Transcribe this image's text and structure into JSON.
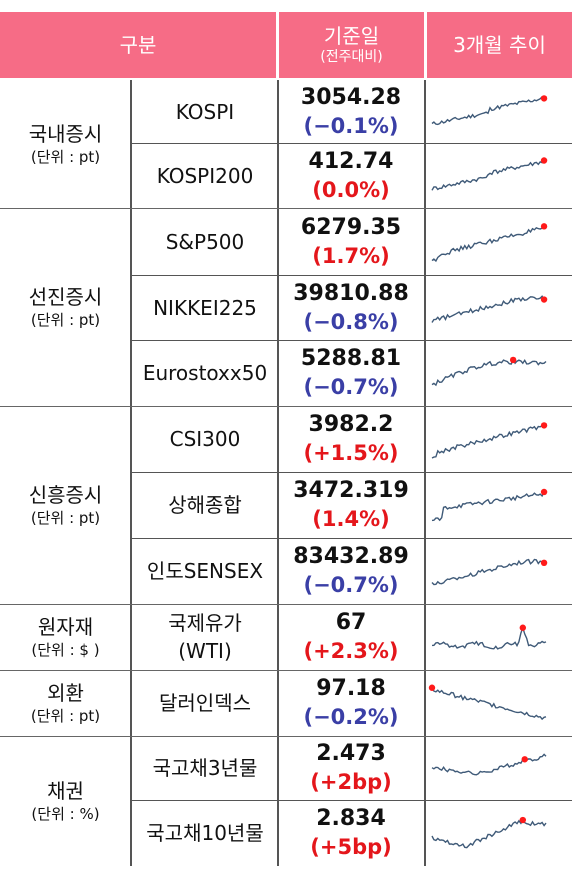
{
  "header": {
    "category_label": "구분",
    "date_label": "기준일",
    "date_sub": "(전주대비)",
    "trend_label": "3개월 추이"
  },
  "groups": [
    {
      "name": "국내증시",
      "unit": "(단위 : pt)"
    },
    {
      "name": "선진증시",
      "unit": "(단위 : pt)"
    },
    {
      "name": "신흥증시",
      "unit": "(단위 : pt)"
    },
    {
      "name": "원자재",
      "unit": "(단위 : $ )"
    },
    {
      "name": "외환",
      "unit": "(단위 : pt)"
    },
    {
      "name": "채권",
      "unit": "(단위 : %)"
    }
  ],
  "rows": [
    {
      "label": "KOSPI",
      "value": "3054.28",
      "change": "(−0.1%)",
      "dir": "down"
    },
    {
      "label": "KOSPI200",
      "value": "412.74",
      "change": "(0.0%)",
      "dir": "flat"
    },
    {
      "label": "S&P500",
      "value": "6279.35",
      "change": "(1.7%)",
      "dir": "up"
    },
    {
      "label": "NIKKEI225",
      "value": "39810.88",
      "change": "(−0.8%)",
      "dir": "down"
    },
    {
      "label": "Eurostoxx50",
      "value": "5288.81",
      "change": "(−0.7%)",
      "dir": "down"
    },
    {
      "label": "CSI300",
      "value": "3982.2",
      "change": "(+1.5%)",
      "dir": "up"
    },
    {
      "label": "상해종합",
      "value": "3472.319",
      "change": "(1.4%)",
      "dir": "up"
    },
    {
      "label": "인도SENSEX",
      "value": "83432.89",
      "change": "(−0.7%)",
      "dir": "down"
    },
    {
      "label": "국제유가\n(WTI)",
      "value": "67",
      "change": "(+2.3%)",
      "dir": "up"
    },
    {
      "label": "달러인덱스",
      "value": "97.18",
      "change": "(−0.2%)",
      "dir": "down"
    },
    {
      "label": "국고채3년물",
      "value": "2.473",
      "change": "(+2bp)",
      "dir": "up"
    },
    {
      "label": "국고채10년물",
      "value": "2.834",
      "change": "(+5bp)",
      "dir": "up"
    }
  ],
  "colors": {
    "header_bg": "#f66c86",
    "up": "#e4161b",
    "down": "#3a3fa6",
    "spark_line": "#3f5a78",
    "spark_dot": "#ff1a1a"
  },
  "sparklines": [
    {
      "shape": "rise",
      "dot": "end"
    },
    {
      "shape": "rise",
      "dot": "end"
    },
    {
      "shape": "rise-strong",
      "dot": "end"
    },
    {
      "shape": "rise-flat",
      "dot": "end"
    },
    {
      "shape": "rise-hump",
      "dot": "mid"
    },
    {
      "shape": "rise-strong",
      "dot": "end"
    },
    {
      "shape": "rise-step",
      "dot": "end"
    },
    {
      "shape": "rise-flat",
      "dot": "end"
    },
    {
      "shape": "oil",
      "dot": "spike"
    },
    {
      "shape": "fall",
      "dot": "start"
    },
    {
      "shape": "dip-rise",
      "dot": "late"
    },
    {
      "shape": "dip-rise2",
      "dot": "mid"
    }
  ]
}
